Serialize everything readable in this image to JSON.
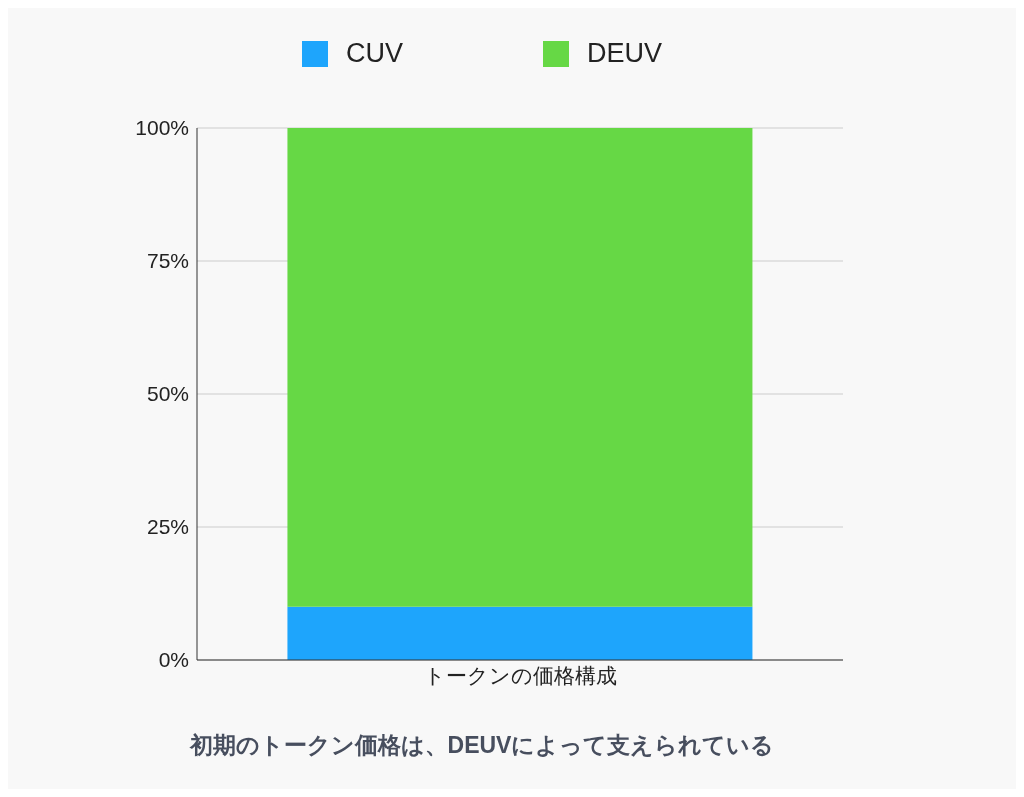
{
  "chart_data": {
    "type": "bar",
    "title": "初期のトークン価格は、DEUVによって支えられている",
    "categories": [
      "トークンの価格構成"
    ],
    "stacked": true,
    "series": [
      {
        "name": "CUV",
        "color": "#1ea5fc",
        "values": [
          10
        ]
      },
      {
        "name": "DEUV",
        "color": "#66d845",
        "values": [
          90
        ]
      }
    ],
    "ylim": [
      0,
      100
    ],
    "yticks": [
      {
        "value": 0,
        "label": "0%"
      },
      {
        "value": 25,
        "label": "25%"
      },
      {
        "value": 50,
        "label": "50%"
      },
      {
        "value": 75,
        "label": "75%"
      },
      {
        "value": 100,
        "label": "100%"
      }
    ],
    "grid": "y",
    "legend": "top"
  }
}
